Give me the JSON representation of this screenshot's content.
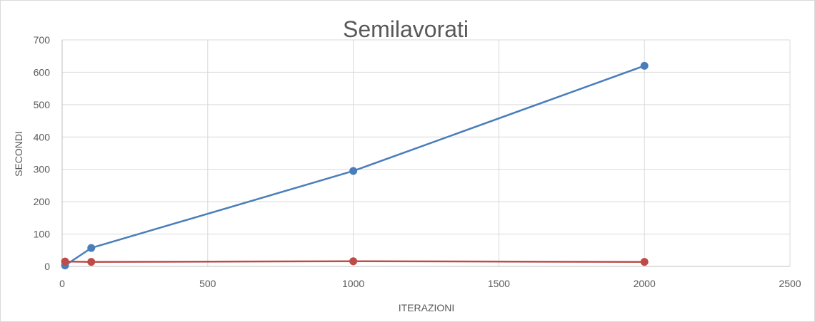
{
  "chart_data": {
    "type": "scatter",
    "title": "Semilavorati",
    "xlabel": "ITERAZIONI",
    "ylabel": "SECONDI",
    "xlim": [
      0,
      2500
    ],
    "ylim": [
      0,
      700
    ],
    "xticks": [
      0,
      500,
      1000,
      1500,
      2000,
      2500
    ],
    "yticks": [
      0,
      100,
      200,
      300,
      400,
      500,
      600,
      700
    ],
    "grid": true,
    "legend": "none",
    "series": [
      {
        "color": "#4a7ebb",
        "points": [
          {
            "x": 10,
            "y": 3
          },
          {
            "x": 100,
            "y": 57
          },
          {
            "x": 1000,
            "y": 295
          },
          {
            "x": 2000,
            "y": 620
          }
        ]
      },
      {
        "color": "#be4b48",
        "points": [
          {
            "x": 10,
            "y": 15
          },
          {
            "x": 100,
            "y": 14
          },
          {
            "x": 1000,
            "y": 16
          },
          {
            "x": 2000,
            "y": 14
          }
        ]
      }
    ]
  }
}
